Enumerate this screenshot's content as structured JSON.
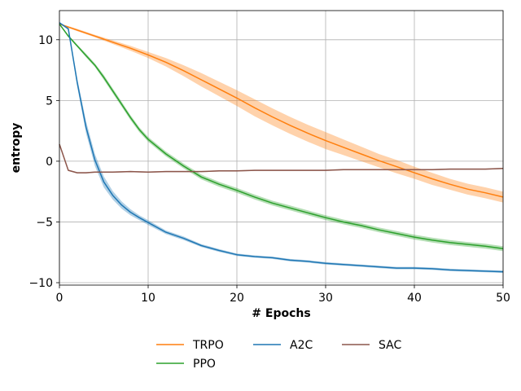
{
  "chart_data": {
    "type": "line",
    "xlabel": "# Epochs",
    "ylabel": "entropy",
    "xlim": [
      0,
      50
    ],
    "ylim": [
      -10.2,
      12.4
    ],
    "xticks": [
      0,
      10,
      20,
      30,
      40,
      50
    ],
    "yticks": [
      -10,
      -5,
      0,
      5,
      10
    ],
    "xtick_labels": [
      "0",
      "10",
      "20",
      "30",
      "40",
      "50"
    ],
    "ytick_labels": [
      "−10",
      "−5",
      "0",
      "5",
      "10"
    ],
    "grid": true,
    "legend_position": "bottom-center",
    "series": [
      {
        "name": "TRPO",
        "color": "#ff7f0e",
        "x": [
          0,
          2,
          4,
          6,
          8,
          10,
          12,
          14,
          16,
          18,
          20,
          22,
          24,
          26,
          28,
          30,
          32,
          34,
          36,
          38,
          40,
          42,
          44,
          46,
          48,
          50
        ],
        "y": [
          11.3,
          10.8,
          10.3,
          9.8,
          9.3,
          8.75,
          8.15,
          7.45,
          6.7,
          5.95,
          5.2,
          4.4,
          3.65,
          2.95,
          2.3,
          1.7,
          1.15,
          0.6,
          0.05,
          -0.45,
          -0.95,
          -1.45,
          -1.9,
          -2.3,
          -2.6,
          -2.95
        ],
        "band": [
          0.05,
          0.1,
          0.1,
          0.15,
          0.2,
          0.25,
          0.35,
          0.45,
          0.55,
          0.6,
          0.65,
          0.7,
          0.7,
          0.7,
          0.7,
          0.7,
          0.65,
          0.6,
          0.55,
          0.55,
          0.5,
          0.5,
          0.45,
          0.45,
          0.45,
          0.45
        ]
      },
      {
        "name": "PPO",
        "color": "#2ca02c",
        "x": [
          0,
          1,
          2,
          3,
          4,
          5,
          6,
          7,
          8,
          9,
          10,
          12,
          14,
          16,
          18,
          20,
          22,
          24,
          26,
          28,
          30,
          32,
          34,
          36,
          38,
          40,
          42,
          44,
          46,
          48,
          50
        ],
        "y": [
          11.3,
          10.3,
          9.5,
          8.7,
          7.9,
          6.9,
          5.8,
          4.7,
          3.6,
          2.6,
          1.8,
          0.6,
          -0.4,
          -1.3,
          -1.9,
          -2.4,
          -2.95,
          -3.45,
          -3.85,
          -4.25,
          -4.65,
          -5.0,
          -5.3,
          -5.65,
          -5.95,
          -6.25,
          -6.5,
          -6.7,
          -6.85,
          -7.0,
          -7.2
        ],
        "band": [
          0.05,
          0.1,
          0.1,
          0.15,
          0.15,
          0.2,
          0.2,
          0.2,
          0.2,
          0.2,
          0.2,
          0.2,
          0.2,
          0.2,
          0.2,
          0.2,
          0.2,
          0.2,
          0.2,
          0.2,
          0.2,
          0.2,
          0.2,
          0.2,
          0.2,
          0.2,
          0.2,
          0.2,
          0.2,
          0.2,
          0.2
        ]
      },
      {
        "name": "A2C",
        "color": "#1f77b4",
        "x": [
          0,
          1,
          2,
          3,
          4,
          5,
          6,
          7,
          8,
          9,
          10,
          12,
          14,
          16,
          18,
          20,
          22,
          24,
          26,
          28,
          30,
          32,
          34,
          36,
          38,
          40,
          42,
          44,
          46,
          48,
          50
        ],
        "y": [
          11.4,
          10.9,
          6.5,
          2.8,
          0.1,
          -1.7,
          -2.8,
          -3.6,
          -4.2,
          -4.65,
          -5.05,
          -5.85,
          -6.35,
          -6.95,
          -7.35,
          -7.7,
          -7.85,
          -7.95,
          -8.15,
          -8.25,
          -8.4,
          -8.5,
          -8.6,
          -8.7,
          -8.8,
          -8.8,
          -8.85,
          -8.95,
          -9.0,
          -9.05,
          -9.1
        ],
        "band": [
          0.05,
          0.1,
          0.35,
          0.5,
          0.5,
          0.45,
          0.35,
          0.3,
          0.25,
          0.2,
          0.2,
          0.15,
          0.15,
          0.12,
          0.12,
          0.1,
          0.1,
          0.1,
          0.1,
          0.1,
          0.1,
          0.1,
          0.1,
          0.1,
          0.1,
          0.1,
          0.1,
          0.1,
          0.1,
          0.1,
          0.1
        ]
      },
      {
        "name": "SAC",
        "color": "#8c564b",
        "x": [
          0,
          1,
          2,
          3,
          4,
          5,
          6,
          8,
          10,
          12,
          14,
          16,
          18,
          20,
          22,
          24,
          26,
          28,
          30,
          32,
          34,
          36,
          38,
          40,
          42,
          44,
          46,
          48,
          50
        ],
        "y": [
          1.4,
          -0.75,
          -0.95,
          -0.95,
          -0.9,
          -0.9,
          -0.9,
          -0.85,
          -0.9,
          -0.85,
          -0.85,
          -0.85,
          -0.8,
          -0.8,
          -0.75,
          -0.75,
          -0.75,
          -0.75,
          -0.75,
          -0.7,
          -0.7,
          -0.7,
          -0.7,
          -0.7,
          -0.7,
          -0.65,
          -0.65,
          -0.65,
          -0.6
        ],
        "band": [
          0.05,
          0.05,
          0.05,
          0.05,
          0.05,
          0.05,
          0.05,
          0.05,
          0.05,
          0.05,
          0.05,
          0.05,
          0.05,
          0.05,
          0.05,
          0.05,
          0.05,
          0.05,
          0.05,
          0.05,
          0.05,
          0.05,
          0.05,
          0.05,
          0.05,
          0.05,
          0.05,
          0.05,
          0.05
        ]
      }
    ],
    "legend_order": [
      "TRPO",
      "A2C",
      "SAC",
      "PPO"
    ]
  }
}
